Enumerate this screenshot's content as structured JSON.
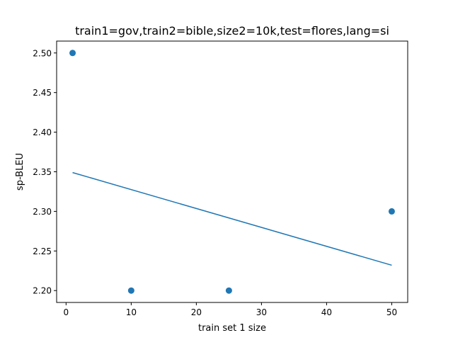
{
  "chart_data": {
    "type": "scatter",
    "title": "train1=gov,train2=bible,size2=10k,test=flores,lang=si",
    "xlabel": "train set 1 size",
    "ylabel": "sp-BLEU",
    "xlim": [
      -1.45,
      52.45
    ],
    "ylim": [
      2.185,
      2.515
    ],
    "xticks": [
      0,
      10,
      20,
      30,
      40,
      50
    ],
    "xtick_labels": [
      "0",
      "10",
      "20",
      "30",
      "40",
      "50"
    ],
    "yticks": [
      2.2,
      2.25,
      2.3,
      2.35,
      2.4,
      2.45,
      2.5
    ],
    "ytick_labels": [
      "2.20",
      "2.25",
      "2.30",
      "2.35",
      "2.40",
      "2.45",
      "2.50"
    ],
    "grid": false,
    "points": {
      "x": [
        1,
        10,
        25,
        50
      ],
      "y": [
        2.5,
        2.2,
        2.2,
        2.3
      ]
    },
    "trendline": {
      "x": [
        1,
        50
      ],
      "y": [
        2.349,
        2.232
      ]
    },
    "colors": {
      "series": "#1f77b4",
      "axes": "#000000"
    }
  }
}
